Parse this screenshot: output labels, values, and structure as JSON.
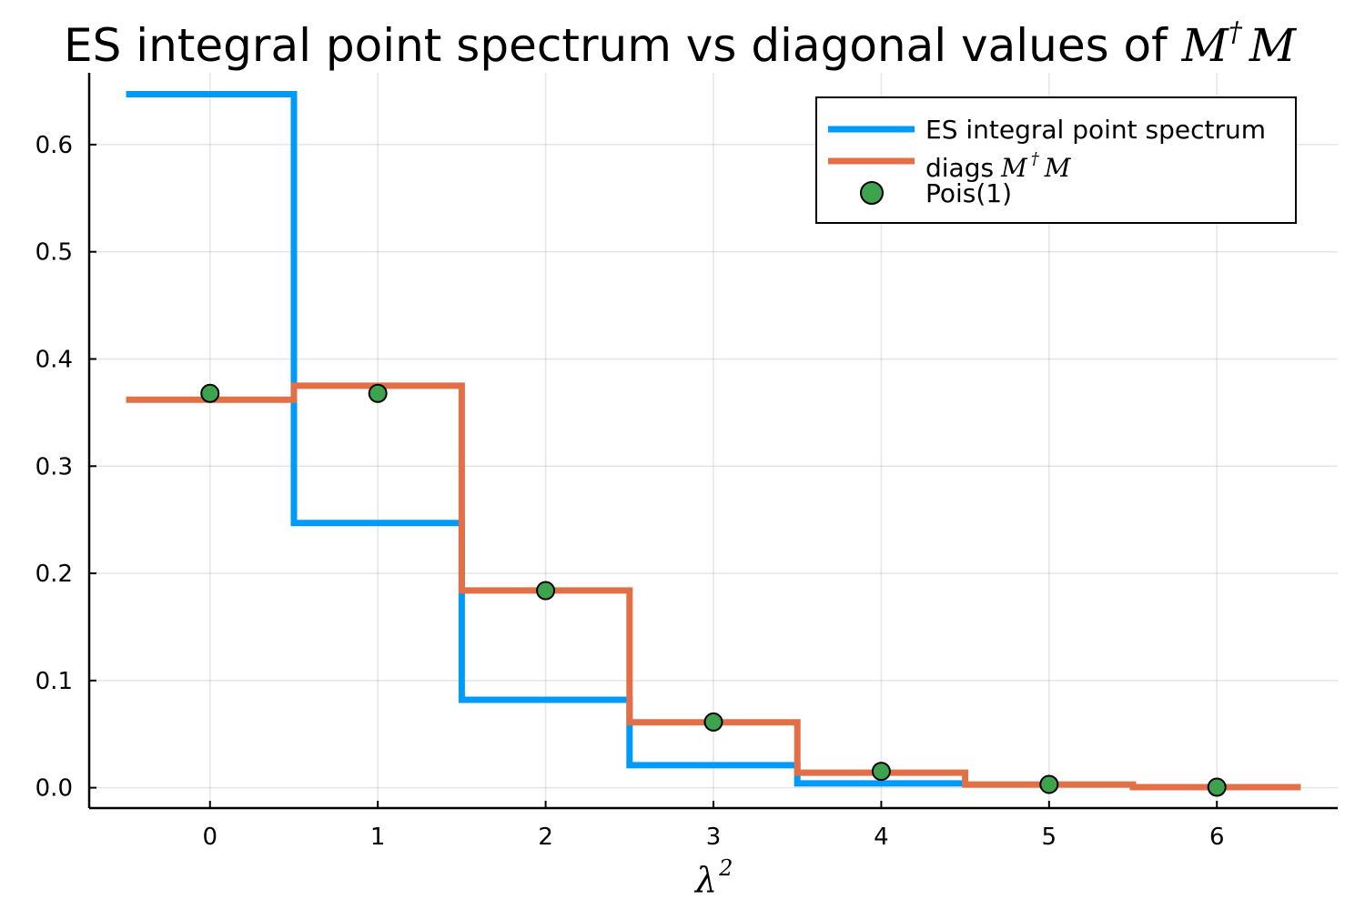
{
  "chart_data": {
    "type": "line",
    "title": {
      "text": "ES integral point spectrum vs diagonal values of ",
      "math_base": "M",
      "math_sup": "†",
      "math_tail": "M"
    },
    "xlabel": {
      "base": "λ",
      "sup": "2"
    },
    "ylabel": "",
    "xlim": [
      -0.72,
      6.72
    ],
    "ylim": [
      -0.019,
      0.667
    ],
    "xticks": [
      0,
      1,
      2,
      3,
      4,
      5,
      6
    ],
    "xtick_labels": [
      "0",
      "1",
      "2",
      "3",
      "4",
      "5",
      "6"
    ],
    "yticks": [
      0.0,
      0.1,
      0.2,
      0.3,
      0.4,
      0.5,
      0.6
    ],
    "ytick_labels": [
      "0.0",
      "0.1",
      "0.2",
      "0.3",
      "0.4",
      "0.5",
      "0.6"
    ],
    "grid": true,
    "legend_position": "top-right",
    "series": [
      {
        "name": "ES integral point spectrum",
        "kind": "step",
        "color": "#009af9",
        "x": [
          0,
          1,
          2,
          3,
          4
        ],
        "y": [
          0.647,
          0.247,
          0.082,
          0.021,
          0.004
        ]
      },
      {
        "name": "diags",
        "name_math": {
          "base": "M",
          "sup": "†",
          "tail": "M"
        },
        "kind": "step",
        "color": "#e26f46",
        "x": [
          0,
          1,
          2,
          3,
          4,
          5,
          6
        ],
        "y": [
          0.362,
          0.375,
          0.184,
          0.061,
          0.014,
          0.003,
          0.0005
        ]
      },
      {
        "name": "Pois(1)",
        "kind": "scatter",
        "color": "#3da44d",
        "x": [
          0,
          1,
          2,
          3,
          4,
          5,
          6
        ],
        "y": [
          0.3679,
          0.3679,
          0.1839,
          0.0613,
          0.0153,
          0.0031,
          0.0005
        ]
      }
    ]
  }
}
